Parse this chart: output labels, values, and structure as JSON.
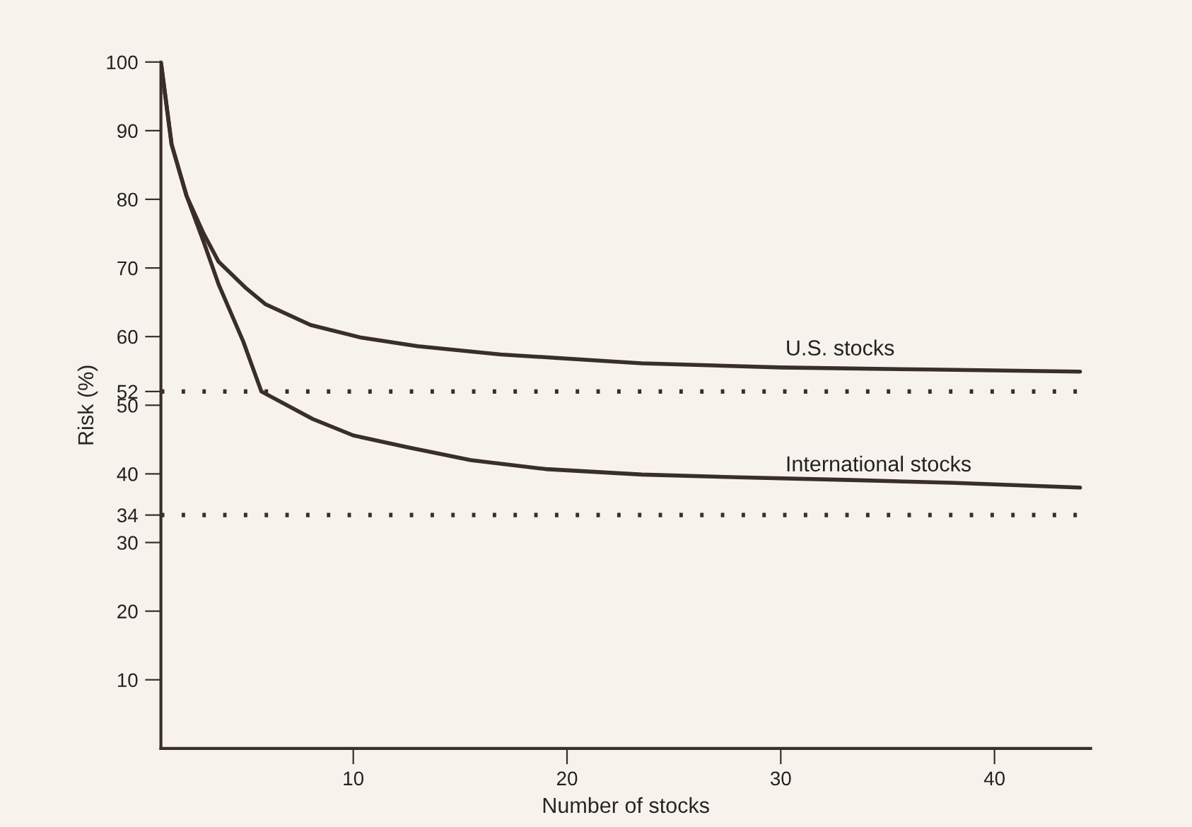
{
  "chart_data": {
    "type": "line",
    "xlabel": "Number of stocks",
    "ylabel": "Risk (%)",
    "xlim": [
      1,
      44.5
    ],
    "ylim": [
      0,
      100
    ],
    "xticks": [
      10,
      20,
      30,
      40
    ],
    "yticks": [
      10,
      20,
      30,
      34,
      40,
      50,
      52,
      60,
      70,
      80,
      90,
      100
    ],
    "series": [
      {
        "name": "U.S. stocks",
        "color": "#3a2e2a",
        "x": [
          1,
          1.5,
          2.2,
          3,
          3.7,
          5,
          5.9,
          8,
          10.3,
          13,
          16.9,
          23.5,
          30,
          37,
          44
        ],
        "values": [
          100,
          88,
          80.5,
          75,
          70.9,
          67,
          64.7,
          61.7,
          59.9,
          58.6,
          57.4,
          56.1,
          55.5,
          55.2,
          54.9
        ]
      },
      {
        "name": "International stocks",
        "color": "#3a2e2a",
        "x": [
          1,
          1.5,
          2.2,
          3,
          3.7,
          4.85,
          5.7,
          8.1,
          10,
          12.5,
          15.5,
          19,
          23.5,
          28,
          33.3,
          38,
          44
        ],
        "values": [
          100,
          88,
          80.5,
          73.8,
          67.6,
          59.3,
          52,
          48,
          45.6,
          43.9,
          42,
          40.7,
          39.9,
          39.5,
          39.1,
          38.7,
          38.0
        ]
      }
    ],
    "ref_lines": [
      {
        "axis": "y",
        "value": 52,
        "line_style": "dotted",
        "color": "#3a2e2a"
      },
      {
        "axis": "y",
        "value": 34,
        "line_style": "dotted",
        "color": "#3a2e2a"
      }
    ],
    "legend": false,
    "grid": false,
    "marker": "none",
    "line_style": "solid"
  }
}
